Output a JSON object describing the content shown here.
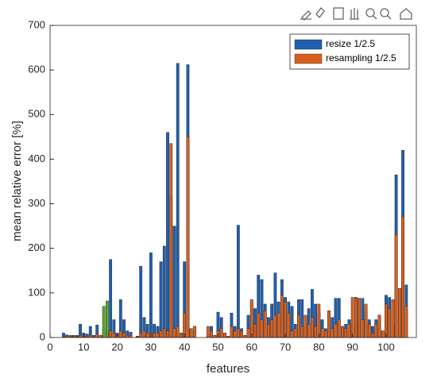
{
  "chart_data": {
    "type": "bar",
    "xlabel": "features",
    "ylabel": "mean relative error [%]",
    "x": [
      1,
      2,
      3,
      4,
      5,
      6,
      7,
      8,
      9,
      10,
      11,
      12,
      13,
      14,
      15,
      16,
      17,
      18,
      19,
      20,
      21,
      22,
      23,
      24,
      25,
      26,
      27,
      28,
      29,
      30,
      31,
      32,
      33,
      34,
      35,
      36,
      37,
      38,
      39,
      40,
      41,
      42,
      43,
      44,
      45,
      46,
      47,
      48,
      49,
      50,
      51,
      52,
      53,
      54,
      55,
      56,
      57,
      58,
      59,
      60,
      61,
      62,
      63,
      64,
      65,
      66,
      67,
      68,
      69,
      70,
      71,
      72,
      73,
      74,
      75,
      76,
      77,
      78,
      79,
      80,
      81,
      82,
      83,
      84,
      85,
      86,
      87,
      88,
      89,
      90,
      91,
      92,
      93,
      94,
      95,
      96,
      97,
      98,
      99,
      100,
      101,
      102,
      103,
      104,
      105,
      106
    ],
    "series": [
      {
        "name": "resize 1/2.5",
        "color": "#1f5fb0",
        "values": [
          0,
          0,
          0,
          10,
          6,
          5,
          5,
          5,
          30,
          10,
          8,
          25,
          5,
          28,
          5,
          20,
          15,
          175,
          40,
          10,
          85,
          40,
          15,
          12,
          0,
          3,
          160,
          45,
          30,
          190,
          30,
          25,
          170,
          205,
          460,
          320,
          250,
          615,
          10,
          170,
          612,
          20,
          25,
          0,
          0,
          0,
          5,
          25,
          5,
          57,
          45,
          10,
          3,
          55,
          25,
          252,
          20,
          5,
          50,
          80,
          65,
          140,
          130,
          75,
          45,
          75,
          145,
          80,
          130,
          90,
          80,
          70,
          30,
          85,
          85,
          45,
          65,
          108,
          75,
          55,
          40,
          20,
          60,
          45,
          88,
          88,
          25,
          30,
          40,
          30,
          90,
          88,
          88,
          60,
          40,
          25,
          40,
          50,
          15,
          95,
          90,
          30,
          365,
          110,
          420,
          118
        ]
      },
      {
        "name": "resampling 1/2.5",
        "color": "#d95f1e",
        "values": [
          0,
          0,
          0,
          2,
          3,
          3,
          2,
          2,
          5,
          3,
          3,
          5,
          3,
          8,
          5,
          10,
          10,
          15,
          10,
          5,
          15,
          10,
          5,
          5,
          0,
          2,
          10,
          15,
          10,
          10,
          10,
          10,
          15,
          20,
          15,
          435,
          20,
          25,
          10,
          55,
          450,
          20,
          25,
          0,
          0,
          0,
          25,
          15,
          5,
          15,
          20,
          10,
          3,
          25,
          15,
          20,
          15,
          5,
          20,
          85,
          30,
          55,
          40,
          60,
          30,
          40,
          50,
          55,
          95,
          80,
          55,
          15,
          20,
          50,
          25,
          50,
          30,
          45,
          25,
          75,
          20,
          15,
          60,
          20,
          30,
          40,
          25,
          20,
          30,
          90,
          88,
          88,
          40,
          75,
          30,
          10,
          30,
          50,
          15,
          75,
          65,
          85,
          230,
          110,
          272,
          70
        ]
      },
      {
        "color": "#5aa832",
        "values": [
          0,
          0,
          0,
          0,
          0,
          0,
          0,
          0,
          0,
          0,
          0,
          0,
          0,
          0,
          0,
          70,
          82,
          0,
          0,
          0,
          0,
          0,
          0,
          0,
          0,
          0,
          0,
          0,
          0,
          0,
          0,
          0,
          0,
          0,
          0,
          0,
          0,
          0,
          0,
          0,
          0,
          0,
          0,
          0,
          0,
          0,
          0,
          0,
          0,
          0,
          0,
          0,
          0,
          0,
          0,
          0,
          0,
          0,
          0,
          0,
          0,
          0,
          0,
          0,
          0,
          0,
          0,
          0,
          0,
          0,
          0,
          0,
          0,
          0,
          0,
          0,
          0,
          0,
          0,
          0,
          0,
          0,
          0,
          0,
          0,
          0,
          0,
          0,
          0,
          0,
          0,
          0,
          0,
          0,
          0,
          0,
          0,
          0,
          0,
          0,
          0,
          0,
          0,
          0,
          0,
          0
        ]
      }
    ],
    "xlim": [
      0,
      109
    ],
    "xticks": [
      0,
      10,
      20,
      30,
      40,
      50,
      60,
      70,
      80,
      90,
      100
    ],
    "ylim": [
      0,
      700
    ],
    "yticks": [
      0,
      100,
      200,
      300,
      400,
      500,
      600,
      700
    ],
    "legend": "top-right"
  }
}
